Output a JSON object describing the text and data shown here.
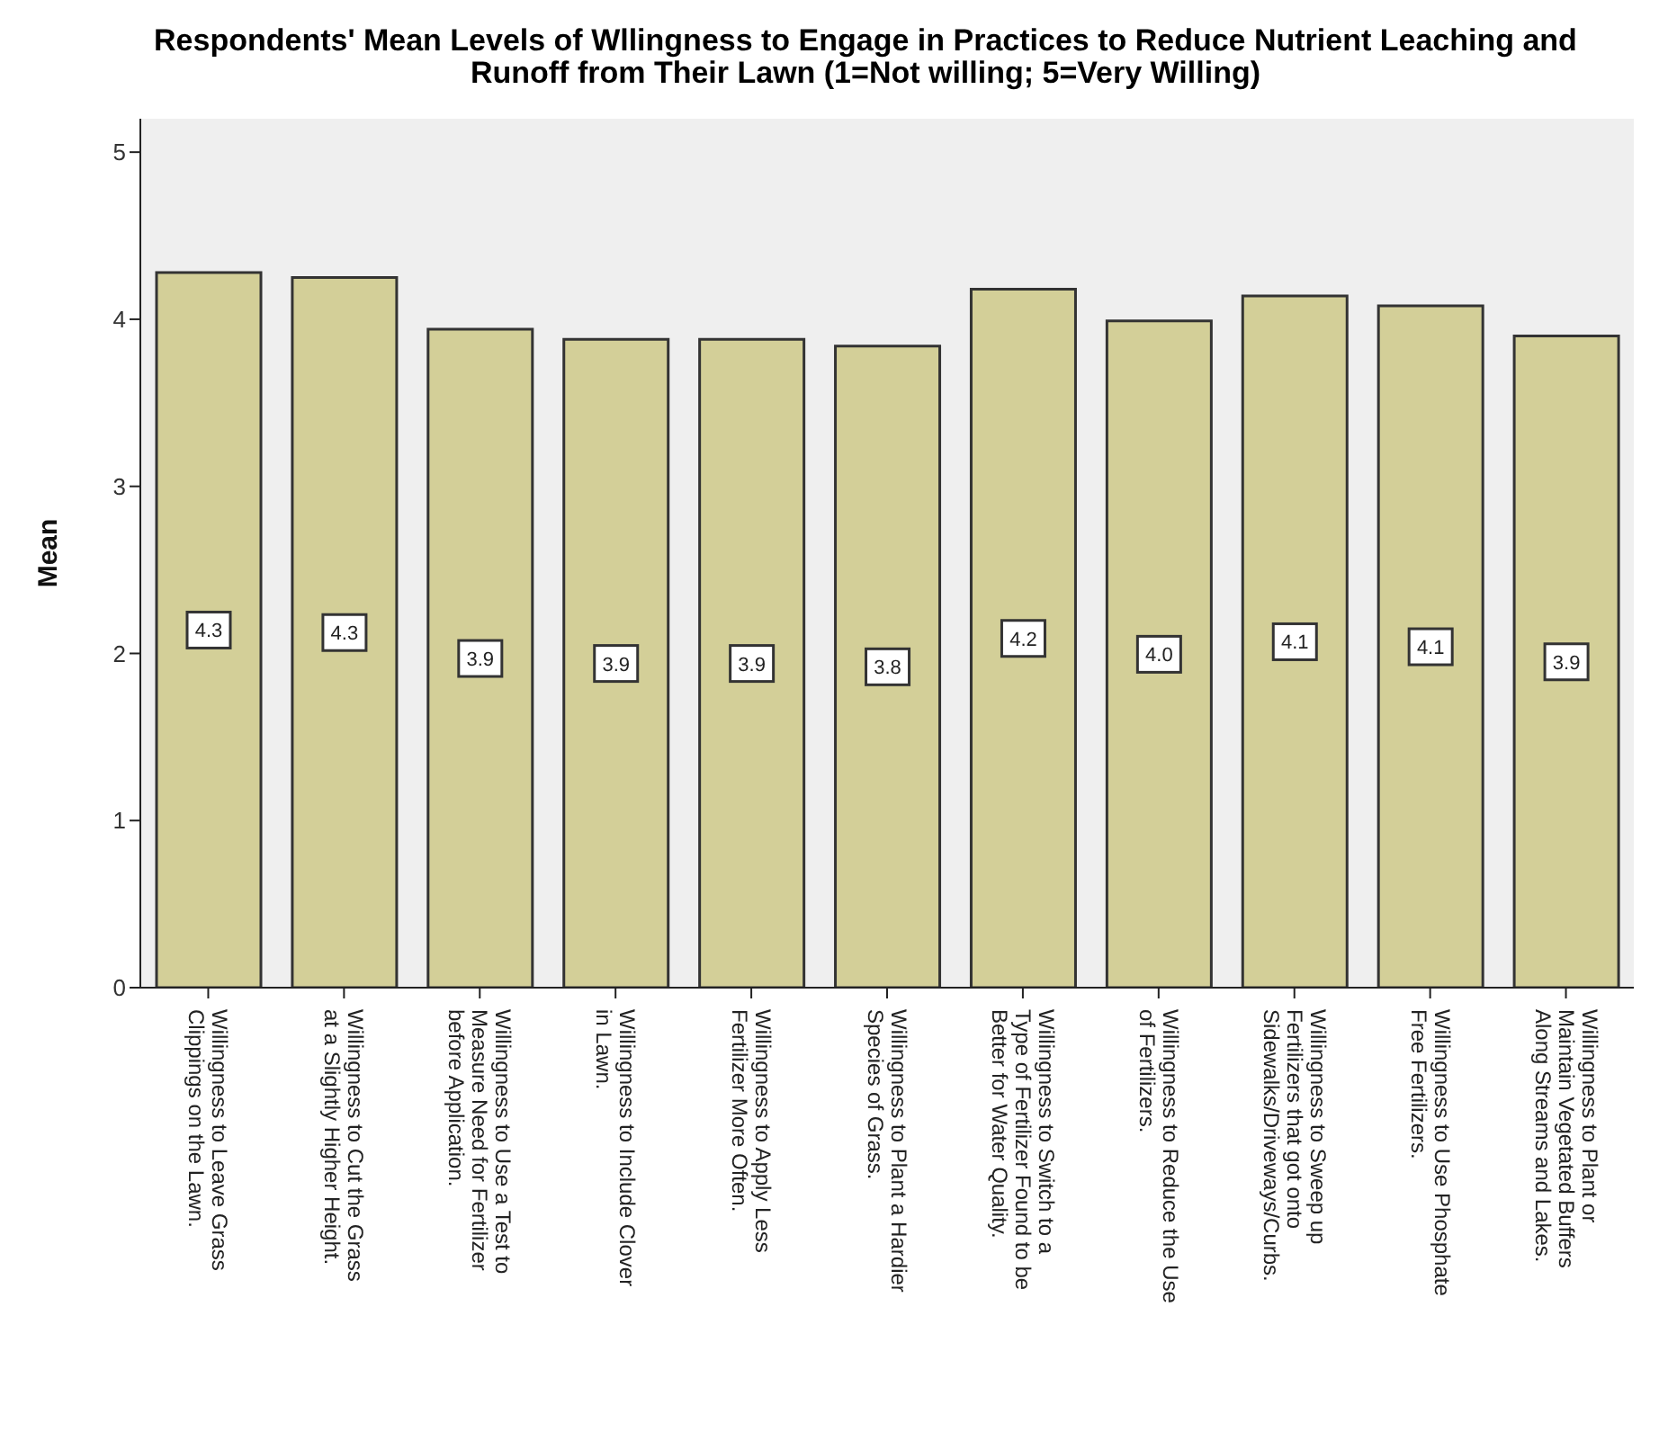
{
  "chart_data": {
    "type": "bar",
    "title": "Respondents' Mean Levels of Wllingness to Engage in Practices to Reduce Nutrient Leaching and Runoff from Their Lawn (1=Not willing; 5=Very Willing)",
    "ylabel": "Mean",
    "categories": [
      "Willingness to Leave Grass Clippings on the Lawn.",
      "Willingness to Cut the Grass at a Slightly Higher Height.",
      "Willingness to Use a Test to Measure Need for Fertilizer before Application.",
      "Willingness to Include Clover in Lawn.",
      "Willingness to Apply Less Fertilizer More Often.",
      "Willingness to Plant a Hardier Species of Grass.",
      "Willingness to Switch to a Type of Fertilizer Found to be Better for Water Quality.",
      "Willingness to Reduce the Use of Fertilizers.",
      "Willingness to Sweep up Fertilizers that got onto Sidewalks/Driveways/Curbs.",
      "Willingness to Use Phosphate Free Fertilizers.",
      "Willingness to Plant or Maintain Vegetated Buffers Along Streams and Lakes."
    ],
    "values": [
      4.28,
      4.25,
      3.94,
      3.88,
      3.88,
      3.84,
      4.18,
      3.99,
      4.14,
      4.08,
      3.9
    ],
    "value_labels": [
      "4.3",
      "4.3",
      "3.9",
      "3.9",
      "3.9",
      "3.8",
      "4.2",
      "4.0",
      "4.1",
      "4.1",
      "3.9"
    ],
    "color": "#d3cf98",
    "ylim": [
      0,
      5.2
    ],
    "yticks": [
      0,
      1,
      2,
      3,
      4,
      5
    ],
    "legend": false
  }
}
